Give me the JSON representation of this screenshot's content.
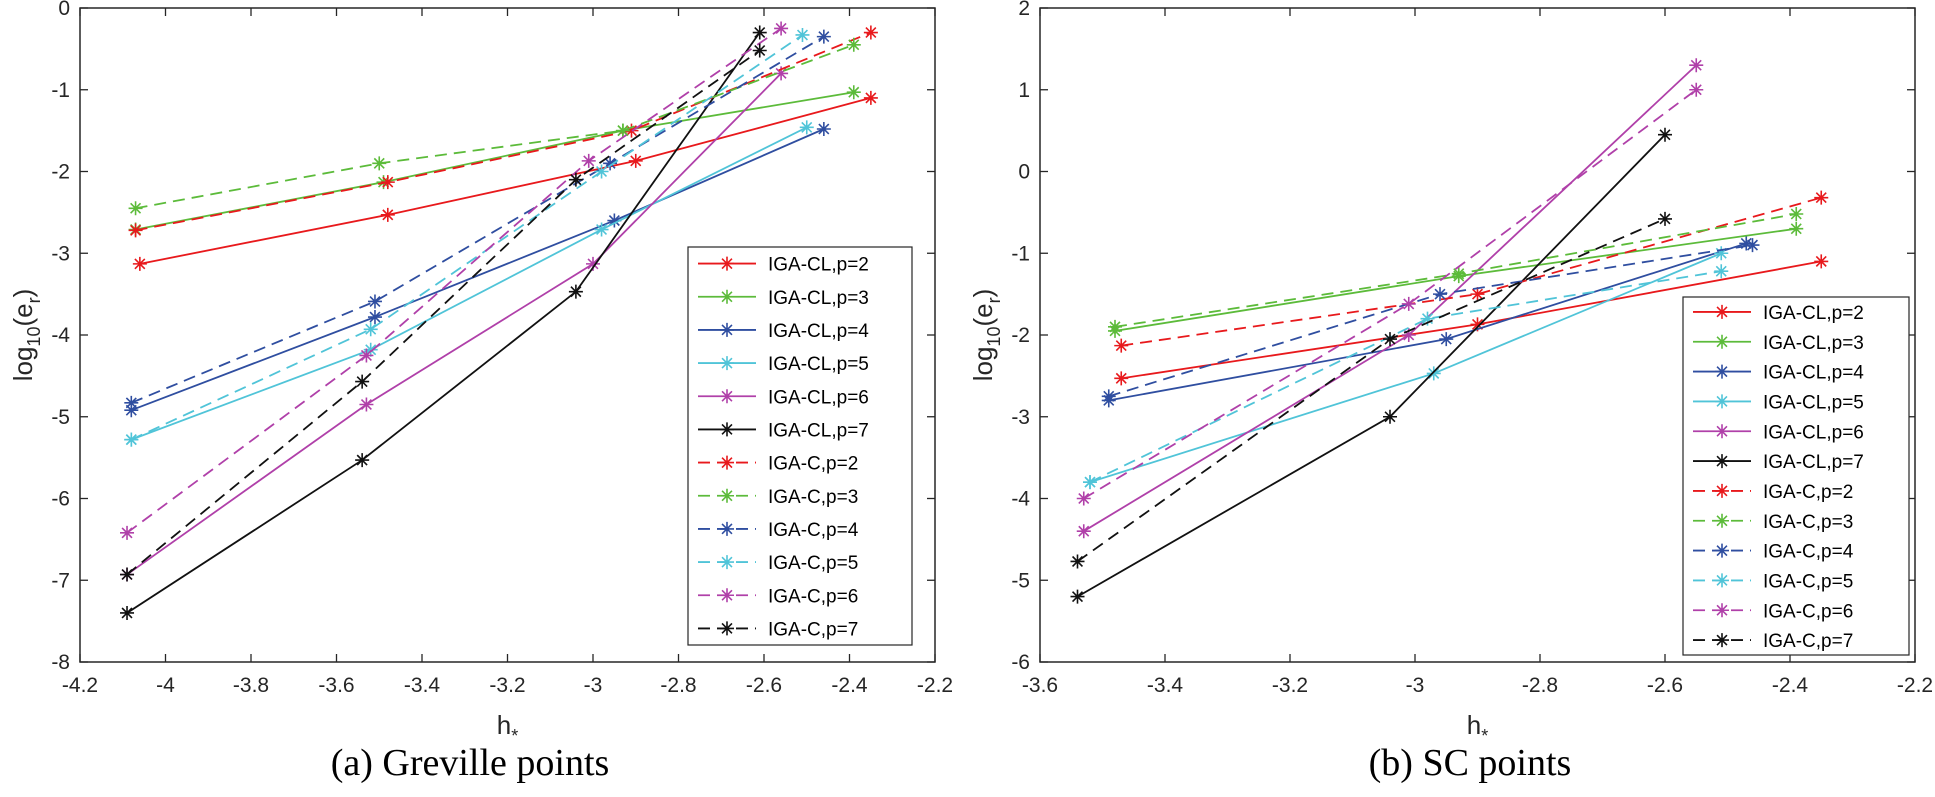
{
  "charts": [
    {
      "caption": "(a)  Greville points",
      "chart_data": {
        "type": "line",
        "xlabel": "h",
        "xlabel_sub": "*",
        "ylabel": "log",
        "ylabel_sub": "10",
        "ylabel_rest": "(e",
        "ylabel_sub2": "r",
        "ylabel_end": ")",
        "xlim": [
          -4.2,
          -2.2
        ],
        "ylim": [
          -8,
          0
        ],
        "xticks": [
          -4.2,
          -4,
          -3.8,
          -3.6,
          -3.4,
          -3.2,
          -3,
          -2.8,
          -2.6,
          -2.4,
          -2.2
        ],
        "xtick_labels": [
          "-4.2",
          "-4",
          "-3.8",
          "-3.6",
          "-3.4",
          "-3.2",
          "-3",
          "-2.8",
          "-2.6",
          "-2.4",
          "-2.2"
        ],
        "yticks": [
          -8,
          -7,
          -6,
          -5,
          -4,
          -3,
          -2,
          -1,
          0
        ],
        "ytick_labels": [
          "-8",
          "-7",
          "-6",
          "-5",
          "-4",
          "-3",
          "-2",
          "-1",
          "0"
        ],
        "legend_position": "right",
        "series": [
          {
            "name": "IGA-CL,p=2",
            "color": "#e8191c",
            "dash": false,
            "x": [
              -4.06,
              -3.48,
              -2.9,
              -2.35
            ],
            "y": [
              -3.13,
              -2.53,
              -1.87,
              -1.1
            ]
          },
          {
            "name": "IGA-CL,p=3",
            "color": "#5cbb3a",
            "dash": false,
            "x": [
              -4.07,
              -3.49,
              -2.93,
              -2.39
            ],
            "y": [
              -2.71,
              -2.13,
              -1.5,
              -1.03
            ]
          },
          {
            "name": "IGA-CL,p=4",
            "color": "#2f4ea0",
            "dash": false,
            "x": [
              -4.08,
              -3.51,
              -2.95,
              -2.46
            ],
            "y": [
              -4.92,
              -3.78,
              -2.6,
              -1.48
            ]
          },
          {
            "name": "IGA-CL,p=5",
            "color": "#50c4d8",
            "dash": false,
            "x": [
              -4.08,
              -3.52,
              -2.98,
              -2.5
            ],
            "y": [
              -5.28,
              -4.18,
              -2.71,
              -1.46
            ]
          },
          {
            "name": "IGA-CL,p=6",
            "color": "#b040a9",
            "dash": false,
            "x": [
              -4.09,
              -3.53,
              -3.0,
              -2.56
            ],
            "y": [
              -6.93,
              -4.85,
              -3.13,
              -0.8
            ]
          },
          {
            "name": "IGA-CL,p=7",
            "color": "#111111",
            "dash": false,
            "x": [
              -4.09,
              -3.54,
              -3.04,
              -2.61
            ],
            "y": [
              -7.4,
              -5.53,
              -3.47,
              -0.3
            ]
          },
          {
            "name": "IGA-C,p=2",
            "color": "#e8191c",
            "dash": true,
            "x": [
              -4.07,
              -3.48,
              -2.91,
              -2.35
            ],
            "y": [
              -2.72,
              -2.13,
              -1.5,
              -0.3
            ]
          },
          {
            "name": "IGA-C,p=3",
            "color": "#5cbb3a",
            "dash": true,
            "x": [
              -4.07,
              -3.5,
              -2.93,
              -2.39
            ],
            "y": [
              -2.45,
              -1.9,
              -1.5,
              -0.45
            ]
          },
          {
            "name": "IGA-C,p=4",
            "color": "#2f4ea0",
            "dash": true,
            "x": [
              -4.08,
              -3.51,
              -2.96,
              -2.46
            ],
            "y": [
              -4.83,
              -3.59,
              -1.9,
              -0.35
            ]
          },
          {
            "name": "IGA-C,p=5",
            "color": "#50c4d8",
            "dash": true,
            "x": [
              -4.08,
              -3.52,
              -2.98,
              -2.51
            ],
            "y": [
              -5.28,
              -3.93,
              -2.0,
              -0.33
            ]
          },
          {
            "name": "IGA-C,p=6",
            "color": "#b040a9",
            "dash": true,
            "x": [
              -4.09,
              -3.53,
              -3.01,
              -2.56
            ],
            "y": [
              -6.42,
              -4.25,
              -1.87,
              -0.25
            ]
          },
          {
            "name": "IGA-C,p=7",
            "color": "#111111",
            "dash": true,
            "x": [
              -4.09,
              -3.54,
              -3.04,
              -2.61
            ],
            "y": [
              -6.93,
              -4.57,
              -2.1,
              -0.52
            ]
          }
        ]
      }
    },
    {
      "caption": "(b)  SC points",
      "chart_data": {
        "type": "line",
        "xlabel": "h",
        "xlabel_sub": "*",
        "ylabel": "log",
        "ylabel_sub": "10",
        "ylabel_rest": "(e",
        "ylabel_sub2": "r",
        "ylabel_end": ")",
        "xlim": [
          -3.6,
          -2.2
        ],
        "ylim": [
          -6,
          2
        ],
        "xticks": [
          -3.6,
          -3.4,
          -3.2,
          -3,
          -2.8,
          -2.6,
          -2.4,
          -2.2
        ],
        "xtick_labels": [
          "-3.6",
          "-3.4",
          "-3.2",
          "-3",
          "-2.8",
          "-2.6",
          "-2.4",
          "-2.2"
        ],
        "yticks": [
          -6,
          -5,
          -4,
          -3,
          -2,
          -1,
          0,
          1,
          2
        ],
        "ytick_labels": [
          "-6",
          "-5",
          "-4",
          "-3",
          "-2",
          "-1",
          "0",
          "1",
          "2"
        ],
        "legend_position": "right",
        "series": [
          {
            "name": "IGA-CL,p=2",
            "color": "#e8191c",
            "dash": false,
            "x": [
              -3.47,
              -2.9,
              -2.35
            ],
            "y": [
              -2.53,
              -1.87,
              -1.1
            ]
          },
          {
            "name": "IGA-CL,p=3",
            "color": "#5cbb3a",
            "dash": false,
            "x": [
              -3.48,
              -2.93,
              -2.39
            ],
            "y": [
              -1.95,
              -1.28,
              -0.7
            ]
          },
          {
            "name": "IGA-CL,p=4",
            "color": "#2f4ea0",
            "dash": false,
            "x": [
              -3.49,
              -2.95,
              -2.47
            ],
            "y": [
              -2.8,
              -2.05,
              -0.88
            ]
          },
          {
            "name": "IGA-CL,p=5",
            "color": "#50c4d8",
            "dash": false,
            "x": [
              -3.52,
              -2.97,
              -2.51
            ],
            "y": [
              -3.8,
              -2.47,
              -1.0
            ]
          },
          {
            "name": "IGA-CL,p=6",
            "color": "#b040a9",
            "dash": false,
            "x": [
              -3.53,
              -3.01,
              -2.55
            ],
            "y": [
              -4.4,
              -2.0,
              1.3
            ]
          },
          {
            "name": "IGA-CL,p=7",
            "color": "#111111",
            "dash": false,
            "x": [
              -3.54,
              -3.04,
              -2.6
            ],
            "y": [
              -5.2,
              -3.0,
              0.45
            ]
          },
          {
            "name": "IGA-C,p=2",
            "color": "#e8191c",
            "dash": true,
            "x": [
              -3.47,
              -2.9,
              -2.35
            ],
            "y": [
              -2.13,
              -1.5,
              -0.32
            ]
          },
          {
            "name": "IGA-C,p=3",
            "color": "#5cbb3a",
            "dash": true,
            "x": [
              -3.48,
              -2.93,
              -2.39
            ],
            "y": [
              -1.9,
              -1.25,
              -0.52
            ]
          },
          {
            "name": "IGA-C,p=4",
            "color": "#2f4ea0",
            "dash": true,
            "x": [
              -3.49,
              -2.96,
              -2.46
            ],
            "y": [
              -2.75,
              -1.5,
              -0.9
            ]
          },
          {
            "name": "IGA-C,p=5",
            "color": "#50c4d8",
            "dash": true,
            "x": [
              -3.52,
              -2.98,
              -2.51
            ],
            "y": [
              -3.8,
              -1.8,
              -1.22
            ]
          },
          {
            "name": "IGA-C,p=6",
            "color": "#b040a9",
            "dash": true,
            "x": [
              -3.53,
              -3.01,
              -2.55
            ],
            "y": [
              -4.0,
              -1.62,
              1.0
            ]
          },
          {
            "name": "IGA-C,p=7",
            "color": "#111111",
            "dash": true,
            "x": [
              -3.54,
              -3.04,
              -2.6
            ],
            "y": [
              -4.77,
              -2.05,
              -0.58
            ]
          }
        ]
      }
    }
  ]
}
